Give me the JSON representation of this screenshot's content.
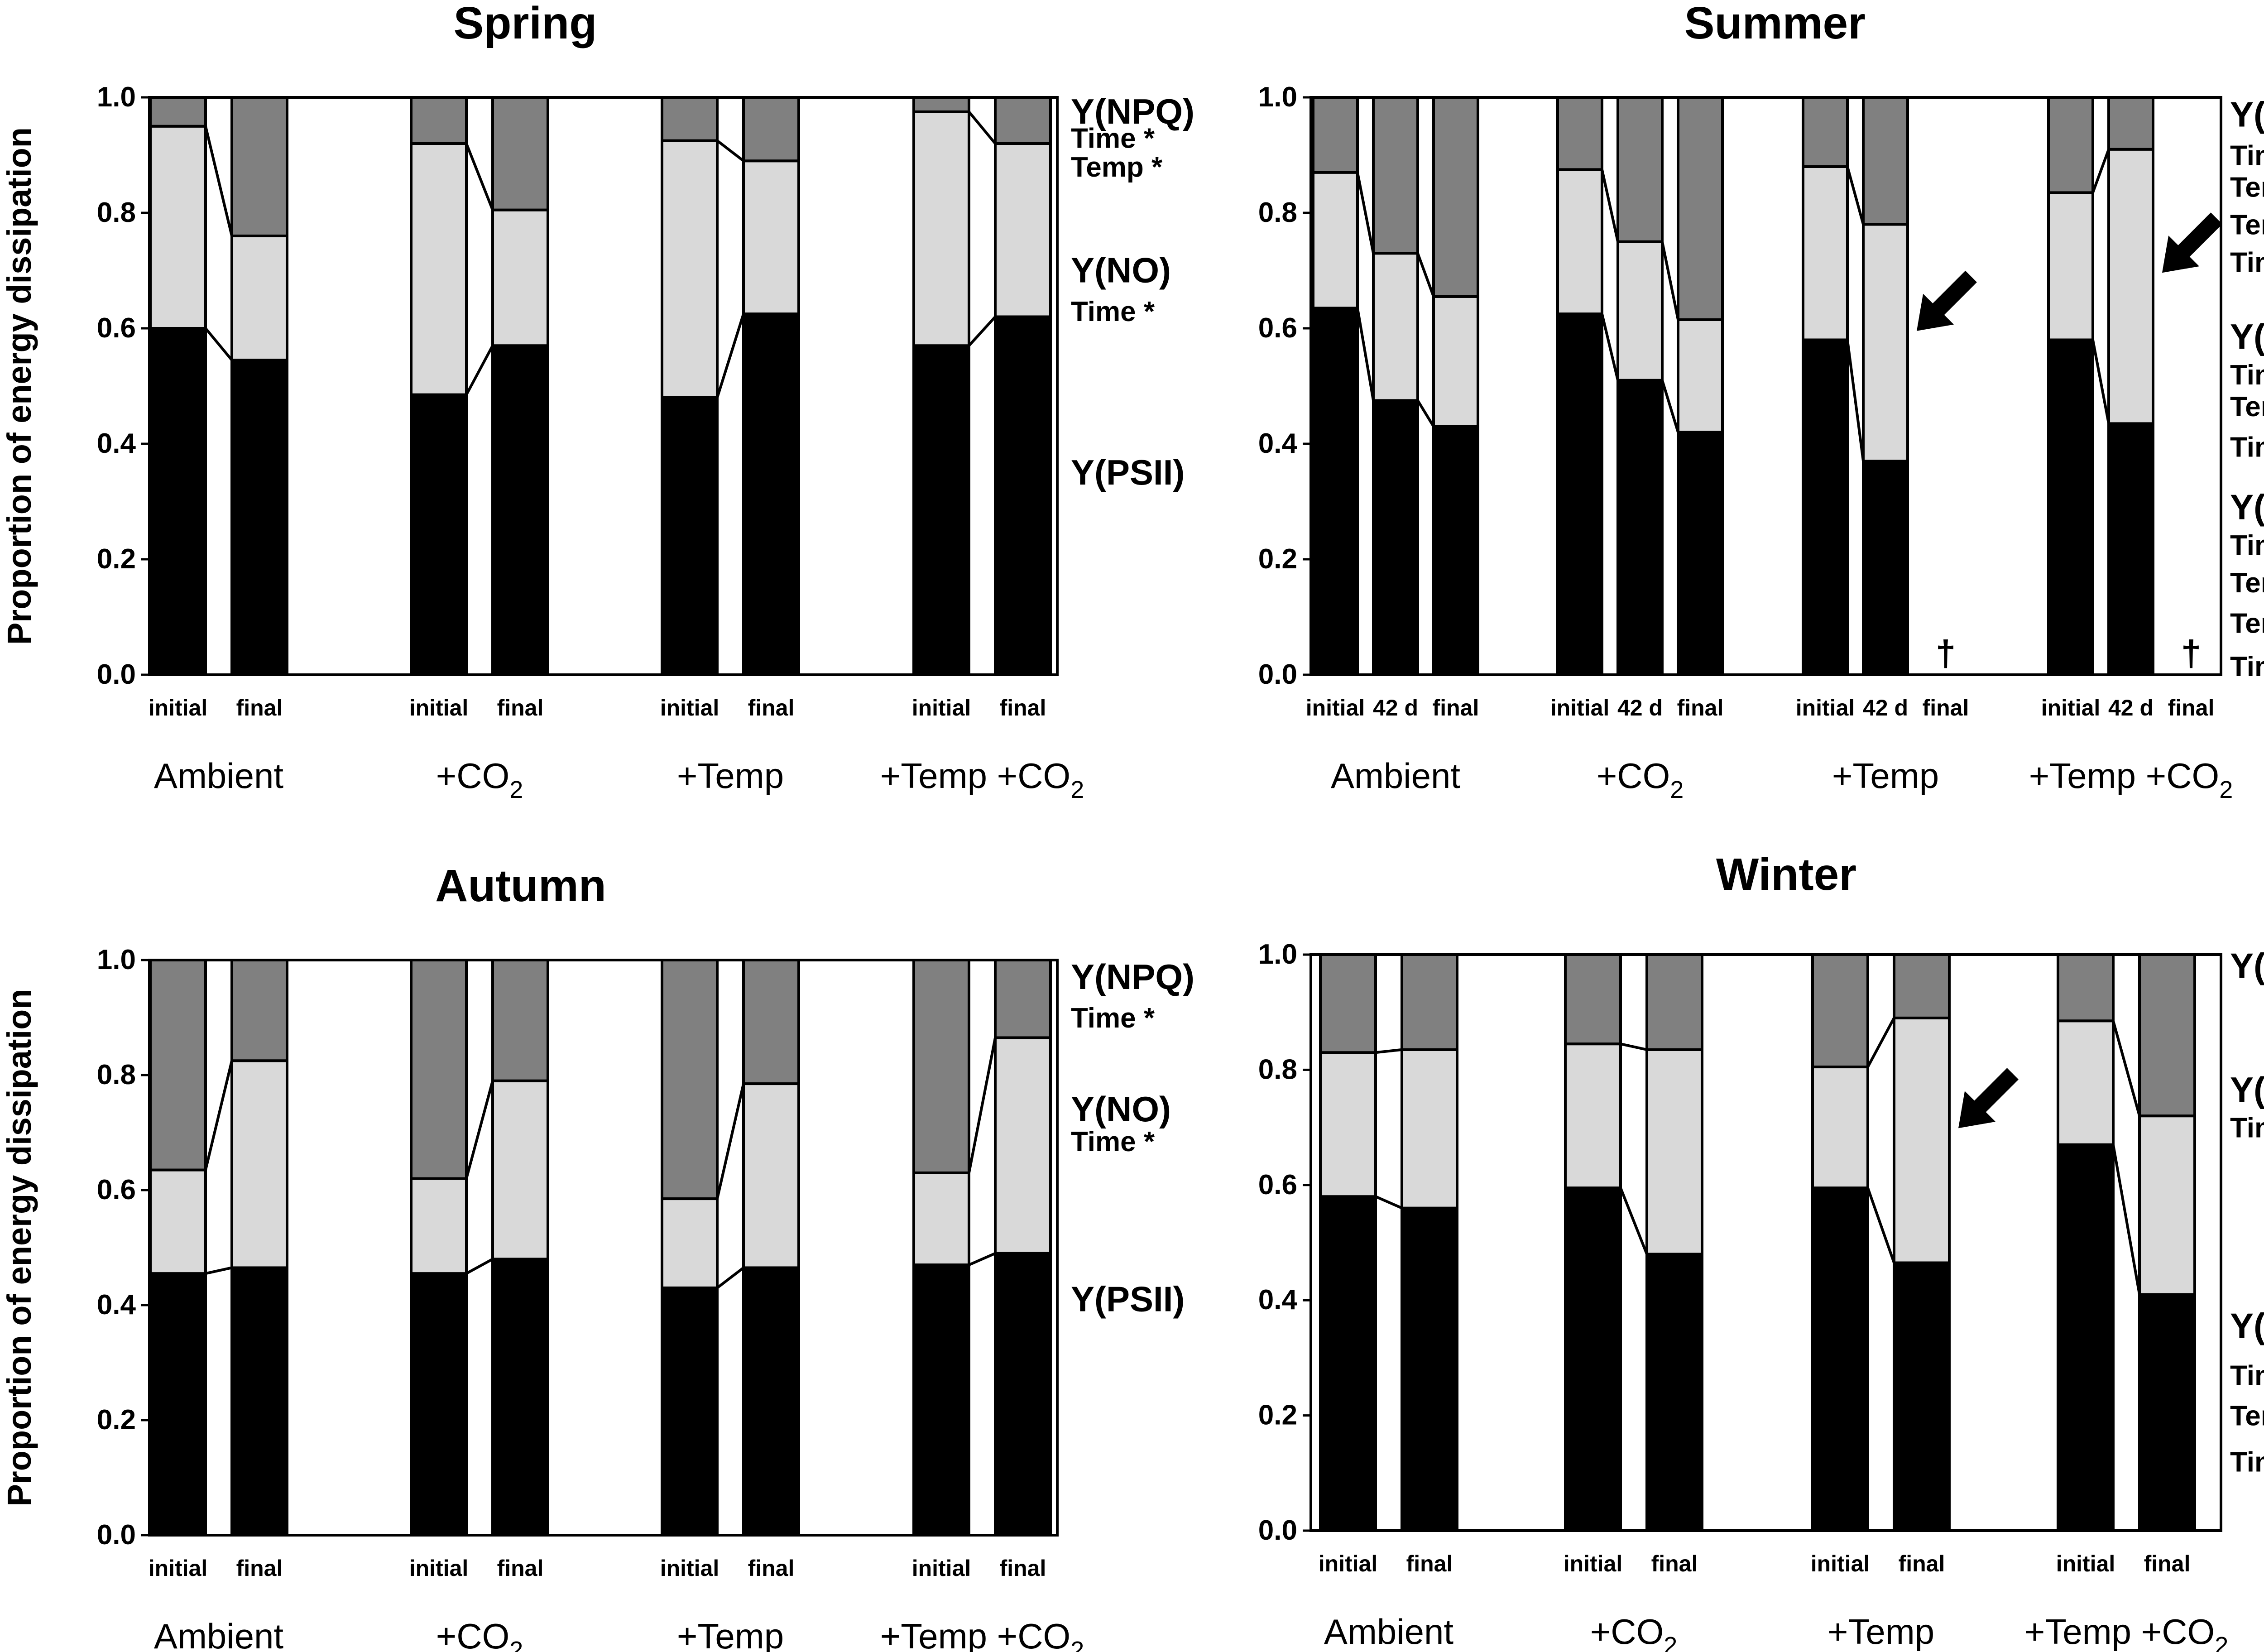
{
  "y_axis_label": "Proportion of energy dissipation",
  "colors": {
    "psii": "#000000",
    "no": "#d9d9d9",
    "npq": "#808080"
  },
  "chart_data": [
    {
      "type": "bar",
      "stacked": true,
      "title": "Spring",
      "ylabel": "Proportion of energy dissipation",
      "ylim": [
        0,
        1
      ],
      "yticks": [
        "0.0",
        "0.2",
        "0.4",
        "0.6",
        "0.8",
        "1.0"
      ],
      "groups": [
        {
          "name": "Ambient",
          "sub": "",
          "bars": [
            {
              "label": "initial",
              "psii": 0.6,
              "no": 0.35,
              "npq": 0.05
            },
            {
              "label": "final",
              "psii": 0.545,
              "no": 0.215,
              "npq": 0.24
            }
          ]
        },
        {
          "name": "+CO",
          "sub": "2",
          "bars": [
            {
              "label": "initial",
              "psii": 0.485,
              "no": 0.435,
              "npq": 0.08
            },
            {
              "label": "final",
              "psii": 0.57,
              "no": 0.235,
              "npq": 0.195
            }
          ]
        },
        {
          "name": "+Temp",
          "sub": "",
          "bars": [
            {
              "label": "initial",
              "psii": 0.48,
              "no": 0.445,
              "npq": 0.075
            },
            {
              "label": "final",
              "psii": 0.625,
              "no": 0.265,
              "npq": 0.11
            }
          ]
        },
        {
          "name": "+Temp +CO",
          "sub": "2",
          "bars": [
            {
              "label": "initial",
              "psii": 0.57,
              "no": 0.405,
              "npq": 0.025
            },
            {
              "label": "final",
              "psii": 0.62,
              "no": 0.3,
              "npq": 0.08
            }
          ]
        }
      ],
      "annotations": [
        {
          "text": "Y(NPQ)",
          "kind": "comp",
          "y": 0.975
        },
        {
          "text": "Time *",
          "kind": "stat",
          "y": 0.93
        },
        {
          "text": "Temp *",
          "kind": "stat",
          "y": 0.88
        },
        {
          "text": "Y(NO)",
          "kind": "comp",
          "y": 0.7
        },
        {
          "text": "Time *",
          "kind": "stat",
          "y": 0.63
        },
        {
          "text": "Y(PSII)",
          "kind": "comp",
          "y": 0.35
        }
      ]
    },
    {
      "type": "bar",
      "stacked": true,
      "title": "Summer",
      "ylabel": "",
      "ylim": [
        0,
        1
      ],
      "yticks": [
        "0.0",
        "0.2",
        "0.4",
        "0.6",
        "0.8",
        "1.0"
      ],
      "groups": [
        {
          "name": "Ambient",
          "sub": "",
          "bars": [
            {
              "label": "initial",
              "psii": 0.635,
              "no": 0.235,
              "npq": 0.13
            },
            {
              "label": "42 d",
              "psii": 0.475,
              "no": 0.255,
              "npq": 0.27
            },
            {
              "label": "final",
              "psii": 0.43,
              "no": 0.225,
              "npq": 0.345
            }
          ]
        },
        {
          "name": "+CO",
          "sub": "2",
          "bars": [
            {
              "label": "initial",
              "psii": 0.625,
              "no": 0.25,
              "npq": 0.125
            },
            {
              "label": "42 d",
              "psii": 0.51,
              "no": 0.24,
              "npq": 0.25
            },
            {
              "label": "final",
              "psii": 0.42,
              "no": 0.195,
              "npq": 0.385
            }
          ]
        },
        {
          "name": "+Temp",
          "sub": "",
          "bars": [
            {
              "label": "initial",
              "psii": 0.58,
              "no": 0.3,
              "npq": 0.12
            },
            {
              "label": "42 d",
              "psii": 0.37,
              "no": 0.41,
              "npq": 0.22
            },
            {
              "label": "final",
              "dead": "†"
            }
          ]
        },
        {
          "name": "+Temp +CO",
          "sub": "2",
          "bars": [
            {
              "label": "initial",
              "psii": 0.58,
              "no": 0.255,
              "npq": 0.165
            },
            {
              "label": "42 d",
              "psii": 0.435,
              "no": 0.475,
              "npq": 0.09
            },
            {
              "label": "final",
              "dead": "†"
            }
          ]
        }
      ],
      "arrows": [
        {
          "group": 2,
          "bar": 1
        },
        {
          "group": 3,
          "bar": 1
        }
      ],
      "annotations": [
        {
          "text": "Y(NPQ)",
          "kind": "comp",
          "y": 0.97
        },
        {
          "text": "Time *",
          "kind": "stat",
          "y": 0.9
        },
        {
          "text": "Temp *",
          "kind": "stat",
          "y": 0.845
        },
        {
          "text": "Temp x",
          "kind": "stat",
          "y": 0.78
        },
        {
          "text": "Time *",
          "kind": "stat",
          "y": 0.715
        },
        {
          "text": "Y(NO)",
          "kind": "comp",
          "y": 0.585
        },
        {
          "text": "Time *",
          "kind": "stat",
          "y": 0.52
        },
        {
          "text": "Temp x",
          "kind": "stat",
          "y": 0.465
        },
        {
          "text": "Time *",
          "kind": "stat",
          "y": 0.395
        },
        {
          "text": "Y(PSII)",
          "kind": "comp",
          "y": 0.29
        },
        {
          "text": "Time *",
          "kind": "stat",
          "y": 0.225
        },
        {
          "text": "Temp *",
          "kind": "stat",
          "y": 0.16
        },
        {
          "text": "Temp x",
          "kind": "stat",
          "y": 0.09
        },
        {
          "text": "Time *",
          "kind": "stat",
          "y": 0.015
        }
      ]
    },
    {
      "type": "bar",
      "stacked": true,
      "title": "Autumn",
      "ylabel": "Proportion of energy dissipation",
      "ylim": [
        0,
        1
      ],
      "yticks": [
        "0.0",
        "0.2",
        "0.4",
        "0.6",
        "0.8",
        "1.0"
      ],
      "groups": [
        {
          "name": "Ambient",
          "sub": "",
          "bars": [
            {
              "label": "initial",
              "psii": 0.455,
              "no": 0.18,
              "npq": 0.365
            },
            {
              "label": "final",
              "psii": 0.465,
              "no": 0.36,
              "npq": 0.175
            }
          ]
        },
        {
          "name": "+CO",
          "sub": "2",
          "bars": [
            {
              "label": "initial",
              "psii": 0.455,
              "no": 0.165,
              "npq": 0.38
            },
            {
              "label": "final",
              "psii": 0.48,
              "no": 0.31,
              "npq": 0.21
            }
          ]
        },
        {
          "name": "+Temp",
          "sub": "",
          "bars": [
            {
              "label": "initial",
              "psii": 0.43,
              "no": 0.155,
              "npq": 0.415
            },
            {
              "label": "final",
              "psii": 0.465,
              "no": 0.32,
              "npq": 0.215
            }
          ]
        },
        {
          "name": "+Temp +CO",
          "sub": "2",
          "bars": [
            {
              "label": "initial",
              "psii": 0.47,
              "no": 0.16,
              "npq": 0.37
            },
            {
              "label": "final",
              "psii": 0.49,
              "no": 0.375,
              "npq": 0.135
            }
          ]
        }
      ],
      "annotations": [
        {
          "text": "Y(NPQ)",
          "kind": "comp",
          "y": 0.97
        },
        {
          "text": "Time *",
          "kind": "stat",
          "y": 0.9
        },
        {
          "text": "Y(NO)",
          "kind": "comp",
          "y": 0.74
        },
        {
          "text": "Time *",
          "kind": "stat",
          "y": 0.685
        },
        {
          "text": "Y(PSII)",
          "kind": "comp",
          "y": 0.41
        }
      ]
    },
    {
      "type": "bar",
      "stacked": true,
      "title": "Winter",
      "ylabel": "",
      "ylim": [
        0,
        1
      ],
      "yticks": [
        "0.0",
        "0.2",
        "0.4",
        "0.6",
        "0.8",
        "1.0"
      ],
      "groups": [
        {
          "name": "Ambient",
          "sub": "",
          "bars": [
            {
              "label": "initial",
              "psii": 0.58,
              "no": 0.25,
              "npq": 0.17
            },
            {
              "label": "final",
              "psii": 0.56,
              "no": 0.275,
              "npq": 0.165
            }
          ]
        },
        {
          "name": "+CO",
          "sub": "2",
          "bars": [
            {
              "label": "initial",
              "psii": 0.595,
              "no": 0.25,
              "npq": 0.155
            },
            {
              "label": "final",
              "psii": 0.48,
              "no": 0.355,
              "npq": 0.165
            }
          ]
        },
        {
          "name": "+Temp",
          "sub": "",
          "bars": [
            {
              "label": "initial",
              "psii": 0.595,
              "no": 0.21,
              "npq": 0.195
            },
            {
              "label": "final",
              "psii": 0.465,
              "no": 0.425,
              "npq": 0.11
            }
          ]
        },
        {
          "name": "+Temp +CO",
          "sub": "2",
          "bars": [
            {
              "label": "initial",
              "psii": 0.67,
              "no": 0.215,
              "npq": 0.115
            },
            {
              "label": "final",
              "psii": 0.41,
              "no": 0.31,
              "npq": 0.28
            }
          ]
        }
      ],
      "arrows": [
        {
          "group": 2,
          "bar": 1
        }
      ],
      "annotations": [
        {
          "text": "Y(NPQ)",
          "kind": "comp",
          "y": 0.98
        },
        {
          "text": "Y(NO)",
          "kind": "comp",
          "y": 0.765
        },
        {
          "text": "Time *",
          "kind": "stat",
          "y": 0.7
        },
        {
          "text": "Y(PSII)",
          "kind": "comp",
          "y": 0.355
        },
        {
          "text": "Time *",
          "kind": "stat",
          "y": 0.27
        },
        {
          "text": "Temp x",
          "kind": "stat",
          "y": 0.2
        },
        {
          "text": "Time *",
          "kind": "stat",
          "y": 0.12
        }
      ]
    }
  ]
}
